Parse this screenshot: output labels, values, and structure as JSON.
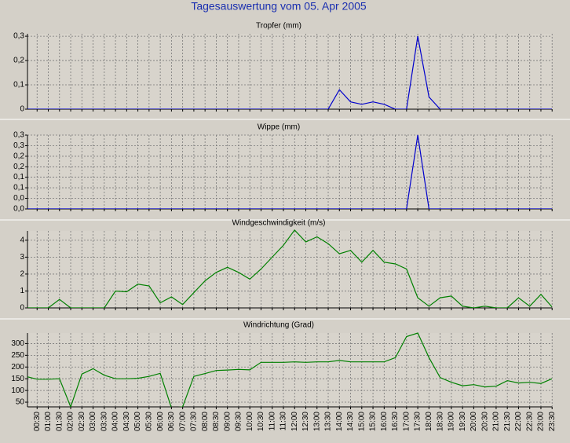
{
  "title": "Tagesauswertung vom 05. Apr 2005",
  "chart_data": [
    {
      "type": "line",
      "title": "Tropfer (mm)",
      "color": "#0000cc",
      "grid": true,
      "ylim": [
        0,
        0.31
      ],
      "yticks": [
        0,
        {
          "value": 0.1,
          "label": "0,1"
        },
        {
          "value": 0.2,
          "label": "0,2"
        },
        {
          "value": 0.3,
          "label": "0,3"
        }
      ],
      "values": [
        0,
        0,
        0,
        0,
        0,
        0,
        0,
        0,
        0,
        0,
        0,
        0,
        0,
        0,
        0,
        0,
        0,
        0,
        0,
        0,
        0,
        0,
        0,
        0,
        0,
        0,
        0,
        0,
        0.08,
        0.03,
        0.02,
        0.03,
        0.02,
        0,
        0,
        0.3,
        0.05,
        0,
        0,
        0,
        0,
        0,
        0,
        0,
        0,
        0,
        0,
        0
      ]
    },
    {
      "type": "line",
      "title": "Wippe (mm)",
      "color": "#0000cc",
      "grid": true,
      "ylim": [
        0,
        0.3
      ],
      "yticks": [
        {
          "value": 0,
          "label": "0,0"
        },
        {
          "value": 0.043,
          "label": "0,0"
        },
        {
          "value": 0.086,
          "label": "0,1"
        },
        {
          "value": 0.129,
          "label": "0,1"
        },
        {
          "value": 0.171,
          "label": "0,2"
        },
        {
          "value": 0.214,
          "label": "0,2"
        },
        {
          "value": 0.257,
          "label": "0,3"
        },
        {
          "value": 0.3,
          "label": "0,3"
        }
      ],
      "values": [
        0,
        0,
        0,
        0,
        0,
        0,
        0,
        0,
        0,
        0,
        0,
        0,
        0,
        0,
        0,
        0,
        0,
        0,
        0,
        0,
        0,
        0,
        0,
        0,
        0,
        0,
        0,
        0,
        0,
        0,
        0,
        0,
        0,
        0,
        0,
        0.3,
        0,
        0,
        0,
        0,
        0,
        0,
        0,
        0,
        0,
        0,
        0,
        0
      ]
    },
    {
      "type": "line",
      "title": "Windgeschwindigkeit (m/s)",
      "color": "#008000",
      "grid": true,
      "ylim": [
        0,
        4.55
      ],
      "yticks": [
        0,
        1,
        2,
        3,
        4
      ],
      "values": [
        0,
        0,
        0,
        0.5,
        0,
        0,
        0,
        0,
        1.0,
        0.95,
        1.4,
        1.3,
        0.3,
        0.65,
        0.2,
        0.9,
        1.6,
        2.1,
        2.4,
        2.1,
        1.7,
        2.3,
        3.0,
        3.7,
        4.6,
        3.9,
        4.2,
        3.8,
        3.2,
        3.4,
        2.7,
        3.4,
        2.7,
        2.6,
        2.3,
        0.6,
        0.1,
        0.6,
        0.7,
        0.1,
        0,
        0.1,
        0,
        0,
        0.6,
        0.1,
        0.8,
        0.05
      ]
    },
    {
      "type": "line",
      "title": "Windrichtung (Grad)",
      "color": "#008000",
      "grid": true,
      "ylim": [
        30,
        345
      ],
      "yticks": [
        50,
        100,
        150,
        200,
        250,
        300
      ],
      "categories": [
        null,
        "00:30",
        "01:00",
        "01:30",
        "02:00",
        "02:30",
        "03:00",
        "03:30",
        "04:00",
        "04:30",
        "05:00",
        "05:30",
        "06:00",
        "06:30",
        "07:00",
        "07:30",
        "08:00",
        "08:30",
        "09:00",
        "09:30",
        "10:00",
        "10:30",
        "11:00",
        "11:30",
        "12:00",
        "12:30",
        "13:00",
        "13:30",
        "14:00",
        "14:30",
        "15:00",
        "15:30",
        "16:00",
        "16:30",
        "17:00",
        "17:30",
        "18:00",
        "18:30",
        "19:00",
        "19:30",
        "20:00",
        "20:30",
        "21:00",
        "21:30",
        "22:00",
        "22:30",
        "23:00",
        "23:30"
      ],
      "values": [
        160,
        148,
        148,
        150,
        30,
        170,
        193,
        165,
        150,
        150,
        152,
        160,
        173,
        25,
        30,
        160,
        172,
        185,
        187,
        190,
        188,
        220,
        220,
        220,
        222,
        220,
        222,
        222,
        228,
        222,
        222,
        222,
        222,
        240,
        330,
        345,
        240,
        155,
        135,
        120,
        125,
        115,
        118,
        142,
        132,
        135,
        130,
        150
      ]
    }
  ]
}
